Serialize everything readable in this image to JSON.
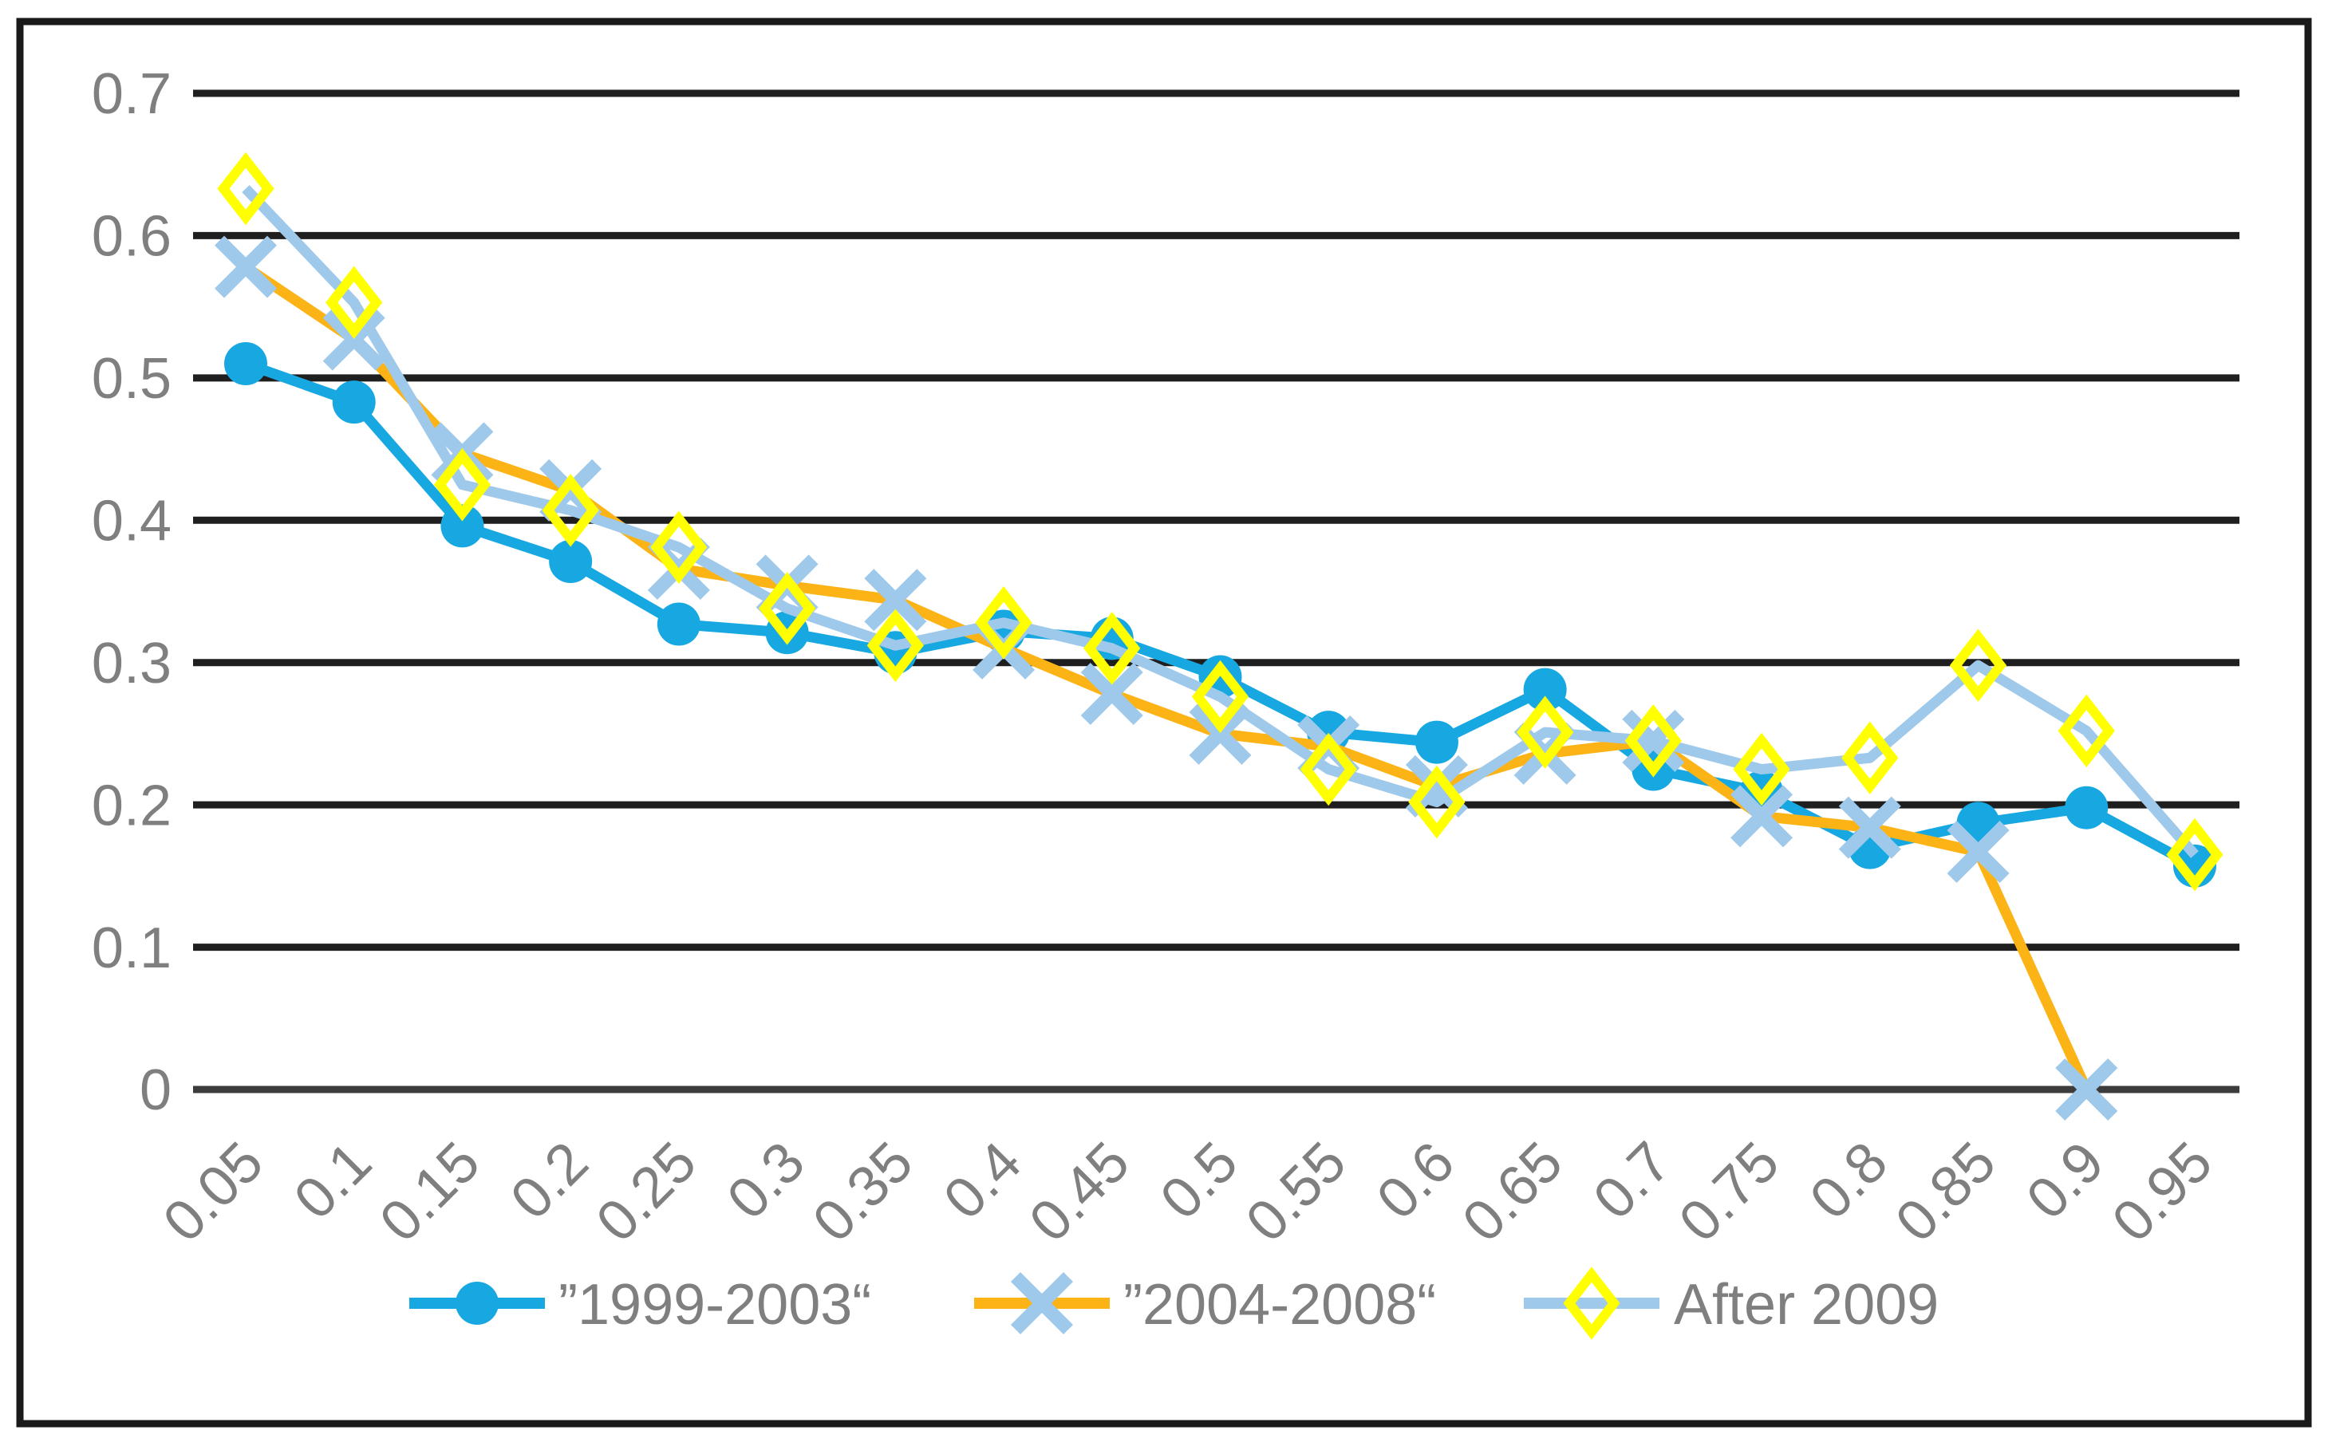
{
  "chart_data": {
    "type": "line",
    "title": "",
    "xlabel": "",
    "ylabel": "",
    "x_categories": [
      "0.05",
      "0.1",
      "0.15",
      "0.2",
      "0.25",
      "0.3",
      "0.35",
      "0.4",
      "0.45",
      "0.5",
      "0.55",
      "0.6",
      "0.65",
      "0.7",
      "0.75",
      "0.8",
      "0.85",
      "0.9",
      "0.95"
    ],
    "y_ticks": [
      "0.7",
      "0.6",
      "0.5",
      "0.4",
      "0.3",
      "0.2",
      "0.1",
      "0"
    ],
    "ylim": [
      0,
      0.7
    ],
    "grid": "horizontal-only",
    "legend_position": "bottom-center",
    "series": [
      {
        "name": "”1999-2003“",
        "marker": "circle",
        "line_color": "#17A8E2",
        "marker_color": "#17A8E2",
        "values": [
          0.51,
          0.483,
          0.396,
          0.371,
          0.327,
          0.321,
          0.307,
          0.322,
          0.317,
          0.29,
          0.251,
          0.244,
          0.281,
          0.225,
          0.209,
          0.17,
          0.187,
          0.198,
          0.157
        ]
      },
      {
        "name": "”2004-2008“",
        "marker": "x",
        "line_color": "#FCB316",
        "marker_color": "#9FC9EA",
        "values": [
          0.578,
          0.527,
          0.447,
          0.421,
          0.366,
          0.354,
          0.344,
          0.31,
          0.278,
          0.25,
          0.241,
          0.213,
          0.236,
          0.245,
          0.192,
          0.184,
          0.167,
          0.0,
          null
        ]
      },
      {
        "name": "After 2009",
        "marker": "diamond",
        "line_color": "#9FC9EA",
        "marker_color": "#FFFF00",
        "values": [
          0.633,
          0.553,
          0.425,
          0.407,
          0.381,
          0.338,
          0.312,
          0.328,
          0.31,
          0.276,
          0.225,
          0.202,
          0.251,
          0.245,
          0.225,
          0.233,
          0.298,
          0.252,
          0.165
        ]
      }
    ]
  },
  "legend": {
    "items": [
      {
        "label": "”1999-2003“"
      },
      {
        "label": "”2004-2008“"
      },
      {
        "label": "After 2009"
      }
    ]
  },
  "colors": {
    "frame": "#1A1A1A",
    "gridline": "#1F1F1F",
    "zero_axis": "#3C3C3C",
    "tick_label": "#7F7F7F",
    "background": "#FFFFFF"
  }
}
